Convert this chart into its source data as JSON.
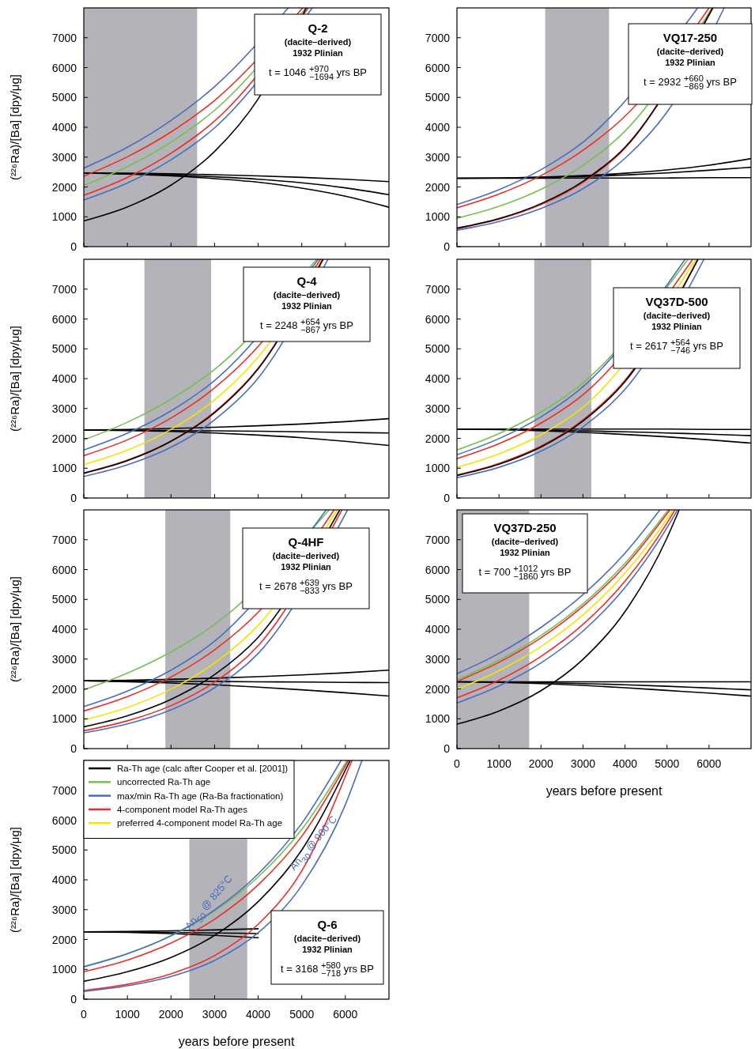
{
  "chart_data": [
    {
      "type": "line",
      "title": "Q-2",
      "subtitle": "(dacite–derived)",
      "annotations": [
        "1932 Plinian",
        "t = 1046 $^{+970}$$_{−1694}$ yrs BP"
      ],
      "ylabel": "(²²⁶Ra)/[Ba] [dpy/μg]",
      "xlim": [
        0,
        7000
      ],
      "ylim": [
        0,
        8000
      ],
      "xticks": [
        0,
        1000,
        2000,
        3000,
        4000,
        5000,
        6000
      ],
      "yticks": [
        0,
        1000,
        2000,
        3000,
        4000,
        5000,
        6000,
        7000
      ],
      "tick_labels": "y",
      "marker": "none",
      "bands": [
        {
          "axis": "x",
          "from": 0,
          "to": 2600,
          "color": "#b4b3b9"
        }
      ],
      "series": [
        {
          "color": "#000000",
          "x": [
            0,
            1000,
            2000,
            3000,
            4000,
            5000,
            6000,
            7000
          ],
          "values": [
            2470,
            2460,
            2440,
            2410,
            2370,
            2320,
            2260,
            2180
          ]
        },
        {
          "color": "#000000",
          "x": [
            0,
            1000,
            2000,
            3000,
            4000,
            5000,
            6000,
            7000
          ],
          "values": [
            2470,
            2440,
            2400,
            2340,
            2260,
            2140,
            1970,
            1740
          ]
        },
        {
          "color": "#000000",
          "x": [
            0,
            1000,
            2000,
            3000,
            4000,
            5000,
            6000,
            7000
          ],
          "values": [
            2470,
            2430,
            2370,
            2280,
            2160,
            1960,
            1690,
            1320
          ]
        },
        {
          "color": "#4a6cc0",
          "x": [
            0,
            1000,
            2000,
            3000,
            4690
          ],
          "values": [
            2630,
            3330,
            4230,
            5360,
            8000
          ]
        },
        {
          "color": "#ed2d24",
          "x": [
            0,
            1000,
            2000,
            3000,
            5020
          ],
          "values": [
            2360,
            3010,
            3840,
            4900,
            8000
          ]
        },
        {
          "color": "#77c04f",
          "x": [
            0,
            1000,
            2000,
            3000,
            5090
          ],
          "values": [
            2050,
            2680,
            3500,
            4570,
            8000
          ]
        },
        {
          "color": "#ed2d24",
          "x": [
            0,
            1000,
            2000,
            3000,
            5150
          ],
          "values": [
            1720,
            2320,
            3130,
            4210,
            8000
          ]
        },
        {
          "color": "#4a6cc0",
          "x": [
            0,
            1000,
            2000,
            3000,
            5240
          ],
          "values": [
            1560,
            2130,
            2910,
            3980,
            8000
          ]
        },
        {
          "color": "#000000",
          "x": [
            0,
            1000,
            2000,
            3000,
            4000,
            5100
          ],
          "values": [
            860,
            1330,
            2060,
            3190,
            4950,
            8000
          ]
        }
      ]
    },
    {
      "type": "line",
      "title": "VQ17-250",
      "subtitle": "(dacite–derived)",
      "annotations": [
        "1932 Plinian",
        "t = 2932 $^{+660}$$_{−869}$ yrs BP"
      ],
      "xlim": [
        0,
        7000
      ],
      "ylim": [
        0,
        8000
      ],
      "xticks": [
        0,
        1000,
        2000,
        3000,
        4000,
        5000,
        6000
      ],
      "yticks": [
        0,
        1000,
        2000,
        3000,
        4000,
        5000,
        6000,
        7000
      ],
      "tick_labels": "y",
      "marker": "none",
      "bands": [
        {
          "axis": "x",
          "from": 2100,
          "to": 3620,
          "color": "#b4b3b9"
        }
      ],
      "series": [
        {
          "color": "#000000",
          "x": [
            0,
            1000,
            2000,
            3000,
            4000,
            5000,
            6000,
            7000
          ],
          "values": [
            2290,
            2300,
            2330,
            2380,
            2460,
            2570,
            2730,
            2950
          ]
        },
        {
          "color": "#000000",
          "x": [
            0,
            1000,
            2000,
            3000,
            4000,
            5000,
            6000,
            7000
          ],
          "values": [
            2290,
            2300,
            2320,
            2350,
            2400,
            2470,
            2560,
            2660
          ]
        },
        {
          "color": "#000000",
          "x": [
            0,
            1000,
            2000,
            3000,
            4000,
            5000,
            6000,
            7000
          ],
          "values": [
            2290,
            2290,
            2290,
            2300,
            2300,
            2300,
            2310,
            2310
          ]
        },
        {
          "color": "#4a6cc0",
          "x": [
            0,
            1000,
            2000,
            3000,
            5730
          ],
          "values": [
            1410,
            1910,
            2580,
            3500,
            8000
          ]
        },
        {
          "color": "#ed2d24",
          "x": [
            0,
            1000,
            2000,
            3000,
            4000,
            6000
          ],
          "values": [
            1300,
            1760,
            2380,
            3230,
            4370,
            8000
          ]
        },
        {
          "color": "#77c04f",
          "x": [
            0,
            1000,
            2000,
            3000,
            4000,
            6070
          ],
          "values": [
            950,
            1350,
            1920,
            2720,
            3870,
            8000
          ]
        },
        {
          "color": "#4a6cc0",
          "x": [
            0,
            1000,
            2000,
            3000,
            4000,
            5000,
            6360
          ],
          "values": [
            550,
            840,
            1280,
            1940,
            2960,
            4510,
            8000
          ]
        },
        {
          "color": "#ed2d24",
          "x": [
            0,
            1000,
            2000,
            3000,
            4000,
            6080
          ],
          "values": [
            600,
            920,
            1410,
            2150,
            3300,
            8000
          ]
        },
        {
          "color": "#000000",
          "x": [
            0,
            1000,
            2000,
            3000,
            4000,
            6090
          ],
          "values": [
            620,
            940,
            1440,
            2190,
            3330,
            8000
          ]
        }
      ]
    },
    {
      "type": "line",
      "title": "Q-4",
      "subtitle": "(dacite–derived)",
      "annotations": [
        "1932 Plinian",
        "t = 2248 $^{+654}$$_{−867}$ yrs BP"
      ],
      "ylabel": "(²²⁶Ra)/[Ba] [dpy/μg]",
      "xlim": [
        0,
        7000
      ],
      "ylim": [
        0,
        8000
      ],
      "xticks": [
        0,
        1000,
        2000,
        3000,
        4000,
        5000,
        6000
      ],
      "yticks": [
        0,
        1000,
        2000,
        3000,
        4000,
        5000,
        6000,
        7000
      ],
      "tick_labels": "y",
      "marker": "none",
      "bands": [
        {
          "axis": "x",
          "from": 1390,
          "to": 2920,
          "color": "#b4b3b9"
        }
      ],
      "series": [
        {
          "color": "#000000",
          "x": [
            0,
            1000,
            2000,
            3000,
            4000,
            5000,
            6000,
            7000
          ],
          "values": [
            2280,
            2300,
            2330,
            2370,
            2420,
            2480,
            2560,
            2660
          ]
        },
        {
          "color": "#000000",
          "x": [
            0,
            1000,
            2000,
            3000,
            4000,
            5000,
            6000,
            7000
          ],
          "values": [
            2280,
            2270,
            2260,
            2250,
            2240,
            2220,
            2200,
            2180
          ]
        },
        {
          "color": "#000000",
          "x": [
            0,
            1000,
            2000,
            3000,
            4000,
            5000,
            6000,
            7000
          ],
          "values": [
            2280,
            2260,
            2230,
            2180,
            2110,
            2020,
            1900,
            1760
          ]
        },
        {
          "color": "#77c04f",
          "x": [
            0,
            1000,
            2000,
            3000,
            5340
          ],
          "values": [
            1950,
            2540,
            3310,
            4310,
            8000
          ]
        },
        {
          "color": "#4a6cc0",
          "x": [
            0,
            1000,
            2000,
            3000,
            5380
          ],
          "values": [
            1610,
            2170,
            2920,
            3940,
            8000
          ]
        },
        {
          "color": "#ed2d24",
          "x": [
            0,
            1000,
            2000,
            3000,
            4000,
            5430
          ],
          "values": [
            1420,
            1950,
            2680,
            3690,
            5080,
            8000
          ]
        },
        {
          "color": "#f4e400",
          "x": [
            0,
            1000,
            2000,
            3000,
            4000,
            5470
          ],
          "values": [
            1120,
            1600,
            2300,
            3290,
            4720,
            8000
          ]
        },
        {
          "color": "#4a6cc0",
          "x": [
            0,
            1000,
            2000,
            3000,
            4000,
            5600
          ],
          "values": [
            720,
            1110,
            1700,
            2620,
            4020,
            8000
          ]
        },
        {
          "color": "#ed2d24",
          "x": [
            0,
            1000,
            2000,
            3000,
            4000,
            5480
          ],
          "values": [
            840,
            1270,
            1910,
            2890,
            4350,
            8000
          ]
        },
        {
          "color": "#000000",
          "x": [
            0,
            1000,
            2000,
            3000,
            4000,
            5490
          ],
          "values": [
            830,
            1250,
            1900,
            2860,
            4330,
            8000
          ]
        }
      ]
    },
    {
      "type": "line",
      "title": "VQ37D-500",
      "subtitle": "(dacite–derived)",
      "annotations": [
        "1932 Plinian",
        "t = 2617 $^{+564}$$_{−746}$ yrs BP"
      ],
      "xlim": [
        0,
        7000
      ],
      "ylim": [
        0,
        8000
      ],
      "xticks": [
        0,
        1000,
        2000,
        3000,
        4000,
        5000,
        6000
      ],
      "yticks": [
        0,
        1000,
        2000,
        3000,
        4000,
        5000,
        6000,
        7000
      ],
      "tick_labels": "y",
      "marker": "none",
      "bands": [
        {
          "axis": "x",
          "from": 1840,
          "to": 3200,
          "color": "#b4b3b9"
        }
      ],
      "series": [
        {
          "color": "#000000",
          "x": [
            0,
            1000,
            2000,
            3000,
            4000,
            5000,
            6000,
            7000
          ],
          "values": [
            2310,
            2310,
            2310,
            2310,
            2310,
            2310,
            2300,
            2300
          ]
        },
        {
          "color": "#000000",
          "x": [
            0,
            1000,
            2000,
            3000,
            4000,
            5000,
            6000,
            7000
          ],
          "values": [
            2310,
            2300,
            2280,
            2250,
            2220,
            2180,
            2140,
            2090
          ]
        },
        {
          "color": "#000000",
          "x": [
            0,
            1000,
            2000,
            3000,
            4000,
            5000,
            6000,
            7000
          ],
          "values": [
            2310,
            2290,
            2250,
            2200,
            2130,
            2050,
            1950,
            1840
          ]
        },
        {
          "color": "#77c04f",
          "x": [
            0,
            1000,
            2000,
            3000,
            5500
          ],
          "values": [
            1610,
            2160,
            2880,
            3860,
            8000
          ]
        },
        {
          "color": "#4a6cc0",
          "x": [
            0,
            1000,
            2000,
            3000,
            5430
          ],
          "values": [
            1450,
            1990,
            2720,
            3730,
            8000
          ]
        },
        {
          "color": "#ed2d24",
          "x": [
            0,
            1000,
            2000,
            3000,
            5610
          ],
          "values": [
            1320,
            1820,
            2510,
            3460,
            8000
          ]
        },
        {
          "color": "#f4e400",
          "x": [
            0,
            1000,
            2000,
            3000,
            5690
          ],
          "values": [
            1030,
            1480,
            2120,
            3040,
            8000
          ]
        },
        {
          "color": "#4a6cc0",
          "x": [
            0,
            1000,
            2000,
            3000,
            4000,
            5880
          ],
          "values": [
            680,
            1030,
            1570,
            2390,
            3640,
            8000
          ]
        },
        {
          "color": "#ed2d24",
          "x": [
            0,
            1000,
            2000,
            3000,
            4000,
            5730
          ],
          "values": [
            770,
            1160,
            1740,
            2620,
            3950,
            8000
          ]
        },
        {
          "color": "#000000",
          "x": [
            0,
            1000,
            2000,
            3000,
            4000,
            5740
          ],
          "values": [
            750,
            1130,
            1710,
            2580,
            3900,
            8000
          ]
        }
      ]
    },
    {
      "type": "line",
      "title": "Q-4HF",
      "subtitle": "(dacite–derived)",
      "annotations": [
        "1932 Plinian",
        "t = 2678 $^{+639}$$_{−833}$ yrs BP"
      ],
      "ylabel": "(²²⁶Ra)/[Ba] [dpy/μg]",
      "xlim": [
        0,
        7000
      ],
      "ylim": [
        0,
        8000
      ],
      "xticks": [
        0,
        1000,
        2000,
        3000,
        4000,
        5000,
        6000
      ],
      "yticks": [
        0,
        1000,
        2000,
        3000,
        4000,
        5000,
        6000,
        7000
      ],
      "tick_labels": "y",
      "marker": "none",
      "bands": [
        {
          "axis": "x",
          "from": 1870,
          "to": 3360,
          "color": "#b4b3b9"
        }
      ],
      "series": [
        {
          "color": "#000000",
          "x": [
            0,
            1000,
            2000,
            3000,
            4000,
            5000,
            6000,
            7000
          ],
          "values": [
            2270,
            2290,
            2320,
            2360,
            2410,
            2470,
            2540,
            2630
          ]
        },
        {
          "color": "#000000",
          "x": [
            0,
            1000,
            2000,
            3000,
            4000,
            5000,
            6000,
            7000
          ],
          "values": [
            2270,
            2260,
            2250,
            2250,
            2240,
            2230,
            2220,
            2210
          ]
        },
        {
          "color": "#000000",
          "x": [
            0,
            1000,
            2000,
            3000,
            4000,
            5000,
            6000,
            7000
          ],
          "values": [
            2270,
            2240,
            2200,
            2140,
            2060,
            1970,
            1870,
            1760
          ]
        },
        {
          "color": "#77c04f",
          "x": [
            0,
            1000,
            2000,
            3000,
            5630
          ],
          "values": [
            1970,
            2530,
            3240,
            4160,
            8000
          ]
        },
        {
          "color": "#4a6cc0",
          "x": [
            0,
            1000,
            2000,
            3000,
            5560
          ],
          "values": [
            1410,
            1930,
            2630,
            3600,
            8000
          ]
        },
        {
          "color": "#ed2d24",
          "x": [
            0,
            1000,
            2000,
            3000,
            4000,
            5740
          ],
          "values": [
            1260,
            1740,
            2400,
            3310,
            4570,
            8000
          ]
        },
        {
          "color": "#f4e400",
          "x": [
            0,
            1000,
            2000,
            3000,
            4000,
            5810
          ],
          "values": [
            960,
            1380,
            1990,
            2870,
            4130,
            8000
          ]
        },
        {
          "color": "#4a6cc0",
          "x": [
            0,
            1000,
            2000,
            3000,
            4000,
            6050
          ],
          "values": [
            530,
            830,
            1300,
            2040,
            3190,
            8000
          ]
        },
        {
          "color": "#ed2d24",
          "x": [
            0,
            1000,
            2000,
            3000,
            4000,
            5920
          ],
          "values": [
            600,
            930,
            1440,
            2230,
            3450,
            8000
          ]
        },
        {
          "color": "#000000",
          "x": [
            0,
            1000,
            2000,
            3000,
            4000,
            5870
          ],
          "values": [
            730,
            1100,
            1650,
            2480,
            3730,
            8000
          ]
        }
      ]
    },
    {
      "type": "line",
      "title": "VQ37D-250",
      "subtitle": "(dacite–derived)",
      "annotations": [
        "1932 Plinian",
        "t = 700 $^{+1012}$$_{−1860}$ yrs BP"
      ],
      "xlabel": "years before present",
      "xlim": [
        0,
        7000
      ],
      "ylim": [
        0,
        8000
      ],
      "xticks": [
        0,
        1000,
        2000,
        3000,
        4000,
        5000,
        6000
      ],
      "yticks": [
        0,
        1000,
        2000,
        3000,
        4000,
        5000,
        6000,
        7000
      ],
      "marker": "none",
      "bands": [
        {
          "axis": "x",
          "from": 0,
          "to": 1720,
          "color": "#b4b3b9"
        }
      ],
      "series": [
        {
          "color": "#000000",
          "x": [
            0,
            1000,
            2000,
            3000,
            4000,
            5000,
            6000,
            7000
          ],
          "values": [
            2240,
            2240,
            2240,
            2240,
            2240,
            2240,
            2240,
            2240
          ]
        },
        {
          "color": "#000000",
          "x": [
            0,
            1000,
            2000,
            3000,
            4000,
            5000,
            6000,
            7000
          ],
          "values": [
            2240,
            2230,
            2210,
            2180,
            2140,
            2090,
            2030,
            1970
          ]
        },
        {
          "color": "#000000",
          "x": [
            0,
            1000,
            2000,
            3000,
            4000,
            5000,
            6000,
            7000
          ],
          "values": [
            2240,
            2220,
            2180,
            2120,
            2040,
            1950,
            1860,
            1760
          ]
        },
        {
          "color": "#4a6cc0",
          "x": [
            0,
            1000,
            2000,
            3000,
            4000,
            4830
          ],
          "values": [
            2510,
            3190,
            4060,
            5160,
            6550,
            8000
          ]
        },
        {
          "color": "#77c04f",
          "x": [
            0,
            1000,
            2000,
            3000,
            4000,
            5030
          ],
          "values": [
            2310,
            2960,
            3790,
            4850,
            6210,
            8000
          ]
        },
        {
          "color": "#ed2d24",
          "x": [
            0,
            1000,
            2000,
            3000,
            4000,
            5070
          ],
          "values": [
            2250,
            2890,
            3710,
            4770,
            6120,
            8000
          ]
        },
        {
          "color": "#f4e400",
          "x": [
            0,
            1000,
            2000,
            3000,
            4000,
            5000,
            5140
          ],
          "values": [
            1990,
            2610,
            3420,
            4480,
            5880,
            7700,
            8000
          ]
        },
        {
          "color": "#ed2d24",
          "x": [
            0,
            1000,
            2000,
            3000,
            4000,
            5000,
            5190
          ],
          "values": [
            1700,
            2290,
            3090,
            4160,
            5610,
            7560,
            8000
          ]
        },
        {
          "color": "#4a6cc0",
          "x": [
            0,
            1000,
            2000,
            3000,
            4000,
            5000,
            5250
          ],
          "values": [
            1530,
            2100,
            2870,
            3940,
            5400,
            7400,
            8000
          ]
        },
        {
          "color": "#000000",
          "x": [
            0,
            1000,
            2000,
            3000,
            4000,
            5000,
            5290
          ],
          "values": [
            820,
            1260,
            1940,
            2990,
            4590,
            7060,
            8000
          ]
        }
      ]
    },
    {
      "type": "line",
      "title": "Q-6",
      "subtitle": "(dacite–derived)",
      "annotations": [
        "1932 Plinian",
        "t = 3168 $^{+580}$$_{−718}$ yrs BP",
        "preferred 4-component model Ra-Th age",
        {
          "text": "An$_{50}$ @ 825°C",
          "x": 3050,
          "y": 3040
        },
        {
          "text": "An$_{30}$ @ 900°C",
          "x": 5450,
          "y": 5030
        }
      ],
      "ylabel": "(²²⁶Ra)/[Ba] [dpy/μg]",
      "xlabel": "years before present",
      "xlim": [
        0,
        7000
      ],
      "ylim": [
        0,
        8000
      ],
      "xticks": [
        0,
        1000,
        2000,
        3000,
        4000,
        5000,
        6000
      ],
      "yticks": [
        0,
        1000,
        2000,
        3000,
        4000,
        5000,
        6000,
        7000
      ],
      "marker": "none",
      "legend": "top left",
      "bands": [
        {
          "axis": "x",
          "from": 2420,
          "to": 3750,
          "color": "#b4b3b9"
        }
      ],
      "series": [
        {
          "color": "#000000",
          "x": [
            0,
            1000,
            2000,
            3000,
            4000
          ],
          "values": [
            2260,
            2270,
            2290,
            2320,
            2360
          ]
        },
        {
          "color": "#000000",
          "x": [
            0,
            1000,
            2000,
            3000,
            4000
          ],
          "values": [
            2260,
            2250,
            2240,
            2220,
            2200
          ]
        },
        {
          "color": "#000000",
          "x": [
            0,
            1000,
            2000,
            3000,
            4000
          ],
          "values": [
            2260,
            2240,
            2200,
            2140,
            2060
          ]
        },
        {
          "name": "Ra-Th age (calc after Cooper et al. [2001])",
          "color": "#000000",
          "x": [
            0,
            1000,
            2000,
            3000,
            4000,
            5000,
            6110
          ],
          "values": [
            600,
            920,
            1400,
            2140,
            3270,
            5000,
            8000
          ]
        },
        {
          "name": "uncorrected Ra-Th age",
          "color": "#77c04f",
          "x": [
            0,
            1000,
            2000,
            3000,
            4000,
            5000,
            6040
          ],
          "values": [
            1100,
            1530,
            2120,
            2950,
            4100,
            5690,
            8000
          ]
        },
        {
          "name": "max/min Ra-Th age (Ra-Ba fractionation)",
          "color": "#4a6cc0",
          "x": [
            0,
            1000,
            2000,
            3000,
            4000,
            5000,
            5900
          ],
          "values": [
            1080,
            1520,
            2130,
            2990,
            4200,
            5890,
            8000
          ]
        },
        {
          "name": "4-component model Ra-Th ages",
          "color": "#ed2d24",
          "x": [
            0,
            1000,
            2000,
            3000,
            4000,
            5000,
            6070
          ],
          "values": [
            920,
            1310,
            1880,
            2680,
            3830,
            5460,
            8000
          ]
        },
        {
          "color": "#ed2d24",
          "x": [
            0,
            1000,
            2000,
            3000,
            4000,
            5000,
            6150
          ],
          "values": [
            290,
            500,
            850,
            1460,
            2510,
            4300,
            8000
          ]
        },
        {
          "color": "#4a6cc0",
          "x": [
            0,
            1000,
            2000,
            3000,
            4000,
            5000,
            6000,
            6380
          ],
          "values": [
            260,
            450,
            760,
            1300,
            2230,
            3810,
            6520,
            8000
          ]
        }
      ]
    }
  ]
}
